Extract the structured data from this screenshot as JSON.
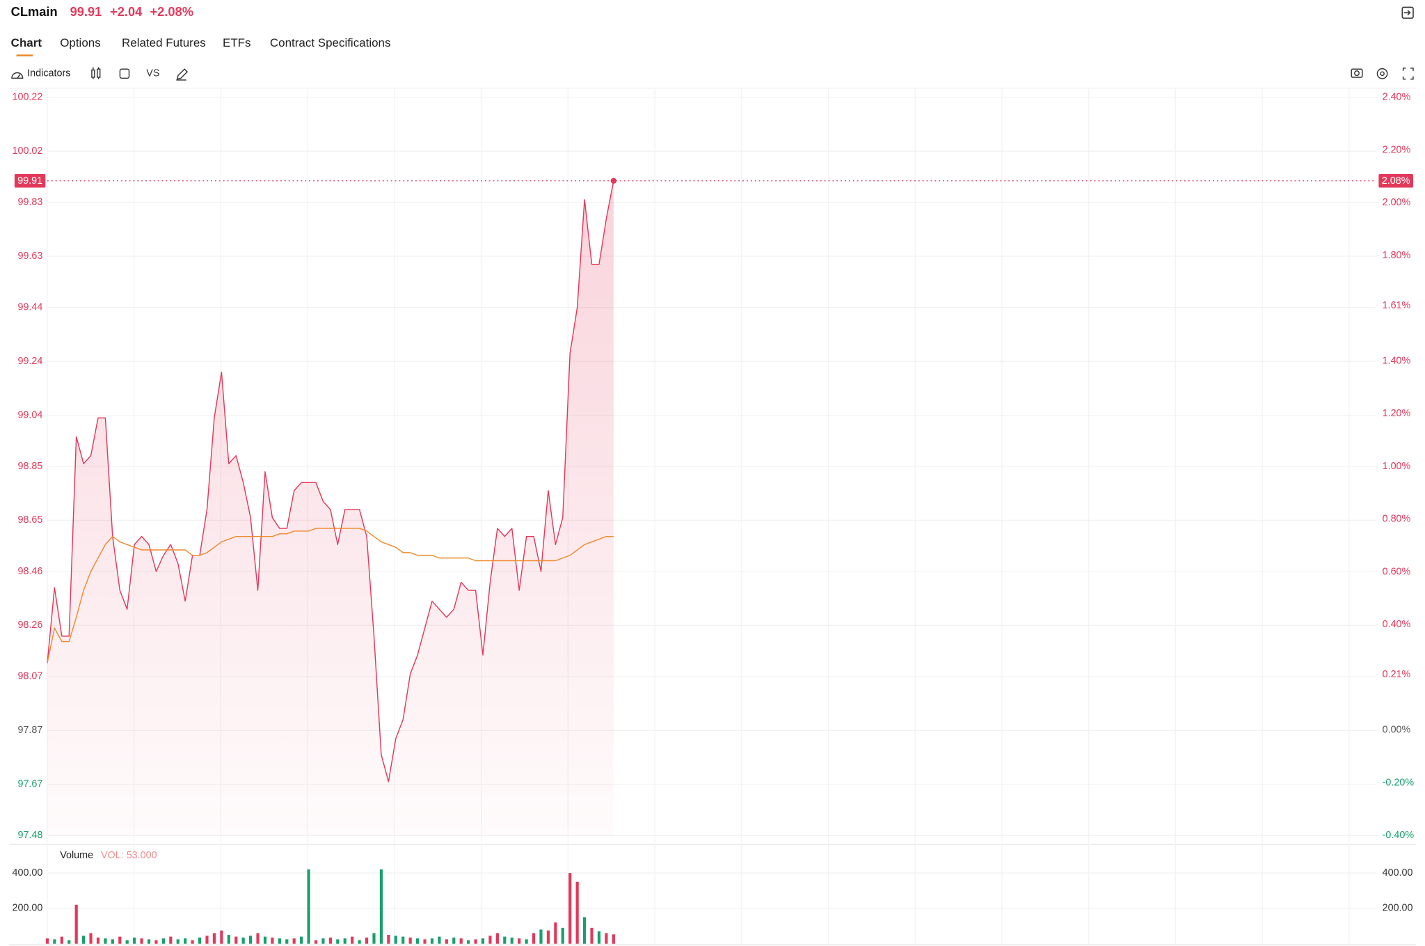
{
  "header": {
    "symbol": "CLmain",
    "price": "99.91",
    "change": "+2.04",
    "change_pct": "+2.08%"
  },
  "tabs": [
    "Chart",
    "Options",
    "Related Futures",
    "ETFs",
    "Contract Specifications"
  ],
  "toolbar": {
    "indicators": "Indicators",
    "compare": "VS"
  },
  "chart_data": [
    {
      "type": "line",
      "ylim": [
        97.48,
        100.22
      ],
      "yticks": [
        100.22,
        100.02,
        99.83,
        99.63,
        99.44,
        99.24,
        99.04,
        98.85,
        98.65,
        98.46,
        98.26,
        98.07,
        97.87,
        97.67,
        97.48
      ],
      "y2lim": [
        -0.4,
        2.4
      ],
      "y2ticks": [
        {
          "value": 2.4,
          "label": "2.40%"
        },
        {
          "value": 2.2,
          "label": "2.20%"
        },
        {
          "value": 2.0,
          "label": "2.00%"
        },
        {
          "value": 1.8,
          "label": "1.80%"
        },
        {
          "value": 1.61,
          "label": "1.61%"
        },
        {
          "value": 1.4,
          "label": "1.40%"
        },
        {
          "value": 1.2,
          "label": "1.20%"
        },
        {
          "value": 1.0,
          "label": "1.00%"
        },
        {
          "value": 0.8,
          "label": "0.80%"
        },
        {
          "value": 0.6,
          "label": "0.60%"
        },
        {
          "value": 0.4,
          "label": "0.40%"
        },
        {
          "value": 0.21,
          "label": "0.21%"
        },
        {
          "value": 0.0,
          "label": "0.00%"
        },
        {
          "value": -0.2,
          "label": "-0.20%"
        },
        {
          "value": -0.4,
          "label": "-0.40%"
        }
      ],
      "xlim": [
        0,
        183
      ],
      "grid": true,
      "last_price": 99.91,
      "last_pct_label": "2.08%",
      "up_color": "#e2395b",
      "flat_color": "#555555",
      "down_color": "#17a06b",
      "series": [
        {
          "color": "#e2395b",
          "fill": true,
          "values": [
            98.12,
            98.4,
            98.22,
            98.22,
            98.96,
            98.86,
            98.89,
            99.03,
            99.03,
            98.59,
            98.39,
            98.32,
            98.56,
            98.59,
            98.56,
            98.46,
            98.52,
            98.56,
            98.49,
            98.35,
            98.52,
            98.52,
            98.69,
            99.03,
            99.2,
            98.86,
            98.89,
            98.79,
            98.66,
            98.39,
            98.83,
            98.66,
            98.62,
            98.62,
            98.76,
            98.79,
            98.79,
            98.79,
            98.72,
            98.69,
            98.56,
            98.69,
            98.69,
            98.69,
            98.59,
            98.22,
            97.78,
            97.68,
            97.84,
            97.91,
            98.08,
            98.15,
            98.25,
            98.35,
            98.32,
            98.29,
            98.32,
            98.42,
            98.39,
            98.39,
            98.15,
            98.42,
            98.62,
            98.59,
            98.62,
            98.39,
            98.59,
            98.59,
            98.46,
            98.76,
            98.56,
            98.66,
            99.27,
            99.44,
            99.84,
            99.6,
            99.6,
            99.77,
            99.91
          ]
        },
        {
          "color": "#ef8a2c",
          "fill": false,
          "values": [
            98.12,
            98.25,
            98.2,
            98.2,
            98.29,
            98.39,
            98.46,
            98.51,
            98.56,
            98.59,
            98.57,
            98.56,
            98.55,
            98.54,
            98.54,
            98.54,
            98.54,
            98.54,
            98.54,
            98.54,
            98.52,
            98.52,
            98.53,
            98.55,
            98.57,
            98.58,
            98.59,
            98.59,
            98.59,
            98.59,
            98.59,
            98.59,
            98.6,
            98.6,
            98.61,
            98.61,
            98.61,
            98.62,
            98.62,
            98.62,
            98.62,
            98.62,
            98.62,
            98.62,
            98.61,
            98.59,
            98.57,
            98.56,
            98.55,
            98.53,
            98.53,
            98.52,
            98.52,
            98.52,
            98.51,
            98.51,
            98.51,
            98.51,
            98.51,
            98.5,
            98.5,
            98.5,
            98.5,
            98.5,
            98.5,
            98.5,
            98.5,
            98.5,
            98.5,
            98.5,
            98.5,
            98.51,
            98.52,
            98.54,
            98.56,
            98.57,
            98.58,
            98.59,
            98.59
          ]
        }
      ]
    },
    {
      "type": "bar",
      "title": "Volume",
      "subtitle": "VOL: 53.000",
      "ylim": [
        0,
        550
      ],
      "yticks": [
        {
          "value": 400,
          "label": "400.00"
        },
        {
          "value": 200,
          "label": "200.00"
        }
      ],
      "xlim": [
        0,
        183
      ],
      "values": [
        30,
        25,
        40,
        20,
        220,
        45,
        60,
        35,
        30,
        25,
        40,
        20,
        35,
        30,
        25,
        20,
        30,
        40,
        25,
        30,
        20,
        35,
        45,
        60,
        75,
        50,
        40,
        35,
        45,
        60,
        40,
        35,
        30,
        25,
        30,
        40,
        420,
        20,
        30,
        35,
        25,
        30,
        40,
        20,
        35,
        60,
        420,
        50,
        45,
        40,
        35,
        30,
        25,
        30,
        40,
        25,
        35,
        30,
        20,
        25,
        30,
        45,
        60,
        40,
        35,
        30,
        25,
        60,
        80,
        75,
        120,
        90,
        400,
        350,
        150,
        90,
        70,
        60,
        53
      ],
      "colors": [
        "#e2395b",
        "#17a06b",
        "#e2395b",
        "#17a06b",
        "#e2395b",
        "#17a06b",
        "#e2395b",
        "#e2395b",
        "#17a06b",
        "#17a06b",
        "#e2395b",
        "#17a06b",
        "#17a06b",
        "#e2395b",
        "#17a06b",
        "#e2395b",
        "#17a06b",
        "#e2395b",
        "#17a06b",
        "#17a06b",
        "#e2395b",
        "#17a06b",
        "#e2395b",
        "#e2395b",
        "#e2395b",
        "#17a06b",
        "#e2395b",
        "#17a06b",
        "#17a06b",
        "#e2395b",
        "#17a06b",
        "#e2395b",
        "#17a06b",
        "#17a06b",
        "#e2395b",
        "#17a06b",
        "#17a06b",
        "#e2395b",
        "#17a06b",
        "#e2395b",
        "#17a06b",
        "#17a06b",
        "#e2395b",
        "#17a06b",
        "#e2395b",
        "#17a06b",
        "#17a06b",
        "#e2395b",
        "#17a06b",
        "#17a06b",
        "#e2395b",
        "#17a06b",
        "#e2395b",
        "#17a06b",
        "#17a06b",
        "#e2395b",
        "#17a06b",
        "#e2395b",
        "#17a06b",
        "#e2395b",
        "#17a06b",
        "#e2395b",
        "#e2395b",
        "#17a06b",
        "#17a06b",
        "#e2395b",
        "#17a06b",
        "#e2395b",
        "#17a06b",
        "#e2395b",
        "#e2395b",
        "#17a06b",
        "#e2395b",
        "#e2395b",
        "#17a06b",
        "#e2395b",
        "#17a06b",
        "#e2395b",
        "#e2395b"
      ]
    }
  ]
}
